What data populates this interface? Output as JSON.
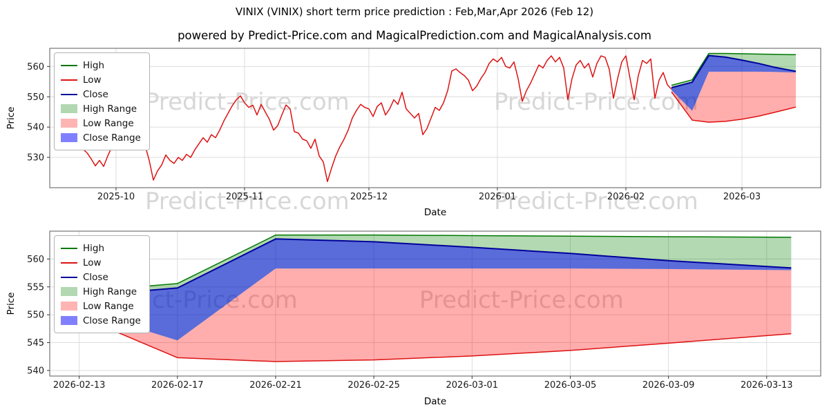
{
  "title": "VINIX (VINIX) short term price prediction : Feb,Mar,Apr 2026 (Feb 12)",
  "subtitle": "powered by Predict-Price.com and MagicalPrediction.com and MagicalAnalysis.com",
  "watermark_text": "Predict-Price.com",
  "colors": {
    "high_line": "#007700",
    "low_line": "#dd1111",
    "close_line": "#000099",
    "high_range_fill": "rgba(0,128,0,0.30)",
    "low_range_fill": "rgba(255,0,0,0.32)",
    "close_range_fill": "rgba(0,0,255,0.50)",
    "grid": "#d8d8d8",
    "spine": "#5a5a5a",
    "watermark": "#d7d7d7"
  },
  "legend": {
    "items": [
      {
        "label": "High",
        "swatch": "line",
        "color": "#007700"
      },
      {
        "label": "Low",
        "swatch": "line",
        "color": "#dd1111"
      },
      {
        "label": "Close",
        "swatch": "line",
        "color": "#000099"
      },
      {
        "label": "High Range",
        "swatch": "patch",
        "color": "#b2d8b2"
      },
      {
        "label": "Low Range",
        "swatch": "patch",
        "color": "#ffb4b4"
      },
      {
        "label": "Close Range",
        "swatch": "patch",
        "color": "#8080ff"
      }
    ]
  },
  "chart_data": [
    {
      "type": "line",
      "title": "VINIX historical price with short-term prediction ranges",
      "xlabel": "Date",
      "ylabel": "Price",
      "x_encoding": "days since 2025-09-15",
      "xlim": [
        0,
        186
      ],
      "ylim": [
        520,
        566
      ],
      "grid": true,
      "legend_position": "upper left",
      "xticks": [
        {
          "t": 16,
          "label": "2025-10"
        },
        {
          "t": 47,
          "label": "2025-11"
        },
        {
          "t": 77,
          "label": "2025-12"
        },
        {
          "t": 108,
          "label": "2026-01"
        },
        {
          "t": 139,
          "label": "2026-02"
        },
        {
          "t": 167,
          "label": "2026-03"
        }
      ],
      "yticks": [
        530,
        540,
        550,
        560
      ],
      "historical_low": [
        [
          7,
          534.0
        ],
        [
          9,
          531.5
        ],
        [
          10,
          529.5
        ],
        [
          11,
          527.2
        ],
        [
          12,
          529.0
        ],
        [
          13,
          527.0
        ],
        [
          14,
          530.5
        ],
        [
          15,
          533.5
        ],
        [
          16,
          536.2
        ],
        [
          17,
          534.5
        ],
        [
          18,
          535.0
        ],
        [
          19,
          536.5
        ],
        [
          20,
          535.5
        ],
        [
          21,
          537.2
        ],
        [
          22,
          535.0
        ],
        [
          23,
          534.0
        ],
        [
          24,
          529.0
        ],
        [
          25,
          522.5
        ],
        [
          26,
          525.5
        ],
        [
          27,
          527.5
        ],
        [
          28,
          530.8
        ],
        [
          29,
          529.0
        ],
        [
          30,
          528.0
        ],
        [
          31,
          530.0
        ],
        [
          32,
          529.0
        ],
        [
          33,
          531.0
        ],
        [
          34,
          530.0
        ],
        [
          35,
          532.5
        ],
        [
          36,
          534.5
        ],
        [
          37,
          536.5
        ],
        [
          38,
          535.0
        ],
        [
          39,
          537.5
        ],
        [
          40,
          536.5
        ],
        [
          41,
          539.0
        ],
        [
          42,
          542.0
        ],
        [
          43,
          544.5
        ],
        [
          44,
          547.0
        ],
        [
          45,
          549.0
        ],
        [
          46,
          550.3
        ],
        [
          47,
          548.0
        ],
        [
          48,
          546.5
        ],
        [
          49,
          547.2
        ],
        [
          50,
          544.0
        ],
        [
          51,
          547.5
        ],
        [
          52,
          545.0
        ],
        [
          53,
          542.5
        ],
        [
          54,
          539.0
        ],
        [
          55,
          540.5
        ],
        [
          56,
          544.0
        ],
        [
          57,
          547.3
        ],
        [
          58,
          546.0
        ],
        [
          59,
          538.5
        ],
        [
          60,
          538.0
        ],
        [
          61,
          536.0
        ],
        [
          62,
          535.5
        ],
        [
          63,
          533.0
        ],
        [
          64,
          536.0
        ],
        [
          65,
          530.5
        ],
        [
          66,
          528.5
        ],
        [
          67,
          522.0
        ],
        [
          68,
          526.5
        ],
        [
          69,
          530.5
        ],
        [
          70,
          533.5
        ],
        [
          71,
          536.0
        ],
        [
          72,
          539.0
        ],
        [
          73,
          543.0
        ],
        [
          74,
          545.5
        ],
        [
          75,
          547.5
        ],
        [
          76,
          546.5
        ],
        [
          77,
          546.0
        ],
        [
          78,
          543.5
        ],
        [
          79,
          546.8
        ],
        [
          80,
          548.0
        ],
        [
          81,
          544.0
        ],
        [
          82,
          546.0
        ],
        [
          83,
          549.0
        ],
        [
          84,
          547.5
        ],
        [
          85,
          551.5
        ],
        [
          86,
          546.0
        ],
        [
          87,
          544.5
        ],
        [
          88,
          543.0
        ],
        [
          89,
          544.5
        ],
        [
          90,
          537.5
        ],
        [
          91,
          539.5
        ],
        [
          92,
          543.0
        ],
        [
          93,
          546.5
        ],
        [
          94,
          545.5
        ],
        [
          95,
          548.0
        ],
        [
          96,
          552.0
        ],
        [
          97,
          558.5
        ],
        [
          98,
          559.2
        ],
        [
          99,
          558.0
        ],
        [
          100,
          557.0
        ],
        [
          101,
          555.5
        ],
        [
          102,
          552.0
        ],
        [
          103,
          553.5
        ],
        [
          104,
          556.0
        ],
        [
          105,
          558.0
        ],
        [
          106,
          561.0
        ],
        [
          107,
          562.5
        ],
        [
          108,
          561.5
        ],
        [
          109,
          563.0
        ],
        [
          110,
          560.0
        ],
        [
          111,
          559.5
        ],
        [
          112,
          561.5
        ],
        [
          113,
          556.0
        ],
        [
          114,
          548.5
        ],
        [
          115,
          552.0
        ],
        [
          116,
          554.5
        ],
        [
          117,
          557.5
        ],
        [
          118,
          560.5
        ],
        [
          119,
          559.5
        ],
        [
          120,
          562.0
        ],
        [
          121,
          563.5
        ],
        [
          122,
          561.5
        ],
        [
          123,
          563.0
        ],
        [
          124,
          559.5
        ],
        [
          125,
          549.0
        ],
        [
          126,
          556.0
        ],
        [
          127,
          560.5
        ],
        [
          128,
          562.0
        ],
        [
          129,
          559.5
        ],
        [
          130,
          561.0
        ],
        [
          131,
          556.5
        ],
        [
          132,
          561.0
        ],
        [
          133,
          563.5
        ],
        [
          134,
          563.0
        ],
        [
          135,
          559.0
        ],
        [
          136,
          549.5
        ],
        [
          137,
          556.0
        ],
        [
          138,
          561.5
        ],
        [
          139,
          563.5
        ],
        [
          140,
          556.0
        ],
        [
          141,
          549.0
        ],
        [
          142,
          557.0
        ],
        [
          143,
          562.0
        ],
        [
          144,
          561.0
        ],
        [
          145,
          562.5
        ],
        [
          146,
          549.5
        ],
        [
          147,
          555.5
        ],
        [
          148,
          558.0
        ],
        [
          149,
          554.0
        ],
        [
          150,
          552.5
        ]
      ],
      "prediction": {
        "t": [
          150,
          155,
          159,
          163,
          167,
          171,
          175,
          180
        ],
        "dates": [
          "2026-02-12",
          "2026-02-17",
          "2026-02-21",
          "2026-02-25",
          "2026-03-01",
          "2026-03-05",
          "2026-03-09",
          "2026-03-14"
        ],
        "high": [
          553.8,
          555.6,
          564.3,
          564.3,
          564.2,
          564.1,
          564.0,
          563.9
        ],
        "close": [
          553.0,
          554.8,
          563.6,
          563.1,
          562.1,
          561.0,
          559.7,
          558.4
        ],
        "close_range_bottom": [
          552.2,
          545.4,
          558.3,
          558.3,
          558.3,
          558.3,
          558.2,
          558.0
        ],
        "low": [
          551.6,
          542.3,
          541.6,
          541.9,
          542.6,
          543.6,
          544.9,
          546.6
        ]
      }
    },
    {
      "type": "line",
      "title": "Prediction detail: Feb 12 - Mar 14 2026",
      "xlabel": "Date",
      "ylabel": "Price",
      "x_encoding": "days since 2025-09-15",
      "xlim": [
        149.8,
        181.2
      ],
      "ylim": [
        539,
        565
      ],
      "grid": true,
      "legend_position": "upper left",
      "xticks": [
        {
          "t": 151,
          "label": "2026-02-13"
        },
        {
          "t": 155,
          "label": "2026-02-17"
        },
        {
          "t": 159,
          "label": "2026-02-21"
        },
        {
          "t": 163,
          "label": "2026-02-25"
        },
        {
          "t": 167,
          "label": "2026-03-01"
        },
        {
          "t": 171,
          "label": "2026-03-05"
        },
        {
          "t": 175,
          "label": "2026-03-09"
        },
        {
          "t": 179,
          "label": "2026-03-13"
        }
      ],
      "yticks": [
        540,
        545,
        550,
        555,
        560
      ],
      "prediction": {
        "t": [
          150,
          155,
          159,
          163,
          167,
          171,
          175,
          180
        ],
        "dates": [
          "2026-02-12",
          "2026-02-17",
          "2026-02-21",
          "2026-02-25",
          "2026-03-01",
          "2026-03-05",
          "2026-03-09",
          "2026-03-14"
        ],
        "high": [
          553.8,
          555.6,
          564.3,
          564.3,
          564.2,
          564.1,
          564.0,
          563.9
        ],
        "close": [
          553.0,
          554.8,
          563.6,
          563.1,
          562.1,
          561.0,
          559.7,
          558.4
        ],
        "close_range_bottom": [
          552.2,
          545.4,
          558.3,
          558.3,
          558.3,
          558.3,
          558.2,
          558.0
        ],
        "low": [
          551.6,
          542.3,
          541.6,
          541.9,
          542.6,
          543.6,
          544.9,
          546.6
        ]
      }
    }
  ]
}
